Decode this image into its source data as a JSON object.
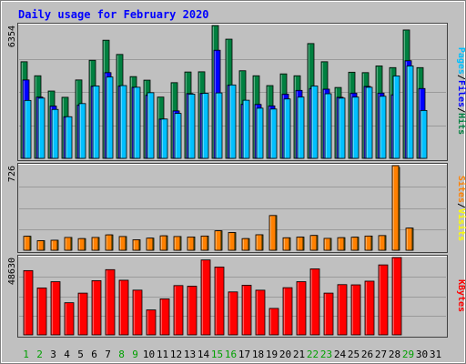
{
  "chart_data": {
    "type": "bar",
    "title": "Daily usage for February 2020",
    "categories": [
      "1",
      "2",
      "3",
      "4",
      "5",
      "6",
      "7",
      "8",
      "9",
      "10",
      "11",
      "12",
      "13",
      "14",
      "15",
      "16",
      "17",
      "18",
      "19",
      "20",
      "21",
      "22",
      "23",
      "24",
      "25",
      "26",
      "27",
      "28",
      "29",
      "30",
      "31"
    ],
    "weekend_days": [
      "1",
      "2",
      "8",
      "9",
      "15",
      "16",
      "22",
      "23",
      "29"
    ],
    "panels": [
      {
        "id": "hits_files_pages",
        "max_label": "6354",
        "ymax": 6354,
        "side_label_parts": [
          "Pages",
          "/",
          "Files",
          "/",
          "Hits"
        ],
        "series": [
          {
            "name": "Hits",
            "color": "#008040",
            "values": [
              4620,
              3950,
              3220,
              2920,
              3750,
              4690,
              5650,
              4970,
              3910,
              3740,
              2930,
              3620,
              4130,
              4140,
              6350,
              5700,
              4190,
              3950,
              3480,
              4040,
              3950,
              5490,
              4620,
              3390,
              4120,
              4100,
              4420,
              4340,
              6140,
              4340,
              null
            ]
          },
          {
            "name": "Files",
            "color": "#0000ff",
            "values": [
              3750,
              2930,
              2500,
              1990,
              2550,
              3450,
              4100,
              3460,
              3400,
              3020,
              1880,
              2270,
              3100,
              3110,
              5170,
              3500,
              2590,
              2580,
              2510,
              3070,
              3250,
              3340,
              3310,
              2920,
              3120,
              3440,
              3120,
              3040,
              4670,
              3340,
              null
            ]
          },
          {
            "name": "Pages",
            "color": "#00c0ff",
            "values": [
              2770,
              2880,
              2340,
              1990,
              2620,
              3460,
              3890,
              3480,
              3400,
              3140,
              1880,
              2150,
              3070,
              3110,
              3130,
              3510,
              2780,
              2400,
              2360,
              2840,
              2930,
              3460,
              3090,
              2880,
              2930,
              3400,
              2970,
              3940,
              4420,
              2290,
              null
            ]
          }
        ]
      },
      {
        "id": "visits_sites",
        "max_label": "726",
        "ymax": 726,
        "side_label_parts": [
          "Sites",
          "/",
          "Visits"
        ],
        "series": [
          {
            "name": "Visits",
            "color": "#ffff00",
            "values": [
              120,
              82,
              86,
              110,
              100,
              110,
              132,
              118,
              90,
              104,
              124,
              118,
              114,
              122,
              167,
              152,
              100,
              133,
              298,
              107,
              113,
              127,
              102,
              108,
              112,
              122,
              126,
              710,
              190,
              null,
              null
            ]
          },
          {
            "name": "Sites",
            "color": "#ff8000",
            "values": [
              120,
              82,
              86,
              110,
              100,
              110,
              132,
              118,
              90,
              104,
              124,
              118,
              114,
              122,
              167,
              152,
              100,
              133,
              298,
              107,
              113,
              127,
              102,
              108,
              112,
              122,
              126,
              726,
              190,
              null,
              null
            ]
          }
        ]
      },
      {
        "id": "kbytes",
        "max_label": "48630",
        "ymax": 48630,
        "side_label_parts": [
          "KBytes"
        ],
        "series": [
          {
            "name": "KBytes",
            "color": "#ff0000",
            "values": [
              40410,
              29500,
              33440,
              20230,
              26260,
              34090,
              41020,
              34360,
              28140,
              15700,
              22640,
              31010,
              30610,
              47110,
              42660,
              27020,
              31200,
              28100,
              16660,
              29680,
              33460,
              41500,
              26270,
              31600,
              31460,
              33780,
              44000,
              48630,
              null,
              null,
              null
            ]
          }
        ]
      }
    ]
  },
  "colors": {
    "background": "#c0c0c0",
    "title": "#0000ff",
    "weekend_day": "#00a000",
    "weekday": "#000000"
  }
}
